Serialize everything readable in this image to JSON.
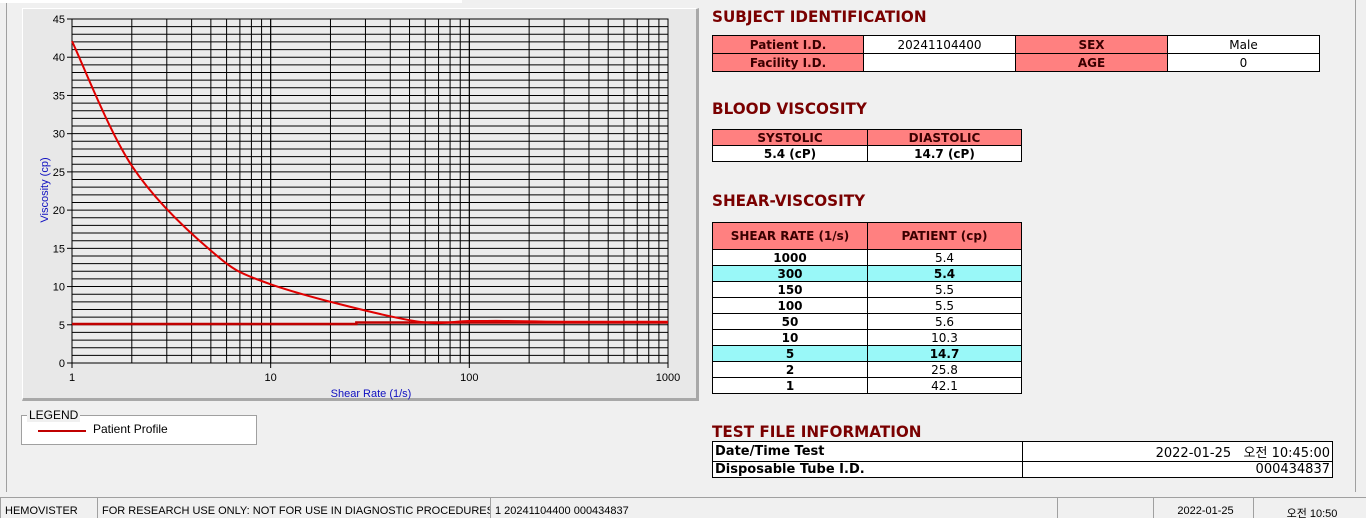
{
  "chart_data": {
    "type": "line",
    "xlabel": "Shear Rate (1/s)",
    "ylabel": "Viscosity (cp)",
    "xscale": "log",
    "xlim": [
      1,
      1000
    ],
    "ylim": [
      0,
      45
    ],
    "x_ticks": [
      "1",
      "10",
      "100",
      "1000"
    ],
    "y_ticks": [
      "0",
      "5",
      "10",
      "15",
      "20",
      "25",
      "30",
      "35",
      "40",
      "45"
    ],
    "grid": true,
    "series": [
      {
        "name": "Patient Profile",
        "color": "#e00000",
        "x": [
          1,
          2,
          5,
          10,
          50,
          100,
          150,
          300,
          1000
        ],
        "y": [
          42.1,
          25.8,
          14.7,
          10.3,
          5.6,
          5.5,
          5.5,
          5.4,
          5.4
        ]
      },
      {
        "color": "#c00000",
        "x": [
          1,
          27,
          27,
          1000
        ],
        "y": [
          5.1,
          5.1,
          5.3,
          5.3
        ]
      }
    ],
    "legend": {
      "title": "LEGEND",
      "entries": [
        "Patient Profile"
      ],
      "placement": "bottom-left"
    }
  },
  "subject": {
    "title": "SUBJECT IDENTIFICATION",
    "patient_id_label": "Patient I.D.",
    "patient_id": "20241104400",
    "sex_label": "SEX",
    "sex": "Male",
    "facility_label": "Facility I.D.",
    "facility": "",
    "age_label": "AGE",
    "age": "0"
  },
  "blood": {
    "title": "BLOOD VISCOSITY",
    "systolic_label": "SYSTOLIC",
    "diastolic_label": "DIASTOLIC",
    "systolic": "5.4 (cP)",
    "diastolic": "14.7 (cP)"
  },
  "shear": {
    "title": "SHEAR-VISCOSITY",
    "col1": "SHEAR RATE (1/s)",
    "col2": "PATIENT (cp)",
    "rows": [
      {
        "rate": "1000",
        "value": "5.4"
      },
      {
        "rate": "300",
        "value": "5.4",
        "highlight": true
      },
      {
        "rate": "150",
        "value": "5.5"
      },
      {
        "rate": "100",
        "value": "5.5"
      },
      {
        "rate": "50",
        "value": "5.6"
      },
      {
        "rate": "10",
        "value": "10.3"
      },
      {
        "rate": "5",
        "value": "14.7",
        "highlight": true
      },
      {
        "rate": "2",
        "value": "25.8"
      },
      {
        "rate": "1",
        "value": "42.1"
      }
    ],
    "highlight_color": "#99f8f8"
  },
  "testfile": {
    "title": "TEST FILE INFORMATION",
    "date_label": "Date/Time Test",
    "date": "2022-01-25   오전 10:45:00",
    "tube_label": "Disposable Tube I.D.",
    "tube": "000434837"
  },
  "status": {
    "app": "HEMOVISTER",
    "notice": "FOR RESEARCH USE ONLY: NOT FOR USE IN DIAGNOSTIC PROCEDURES",
    "record": "1  20241104400  000434837",
    "empty": "",
    "date": "2022-01-25",
    "time": "오전 10:50"
  }
}
